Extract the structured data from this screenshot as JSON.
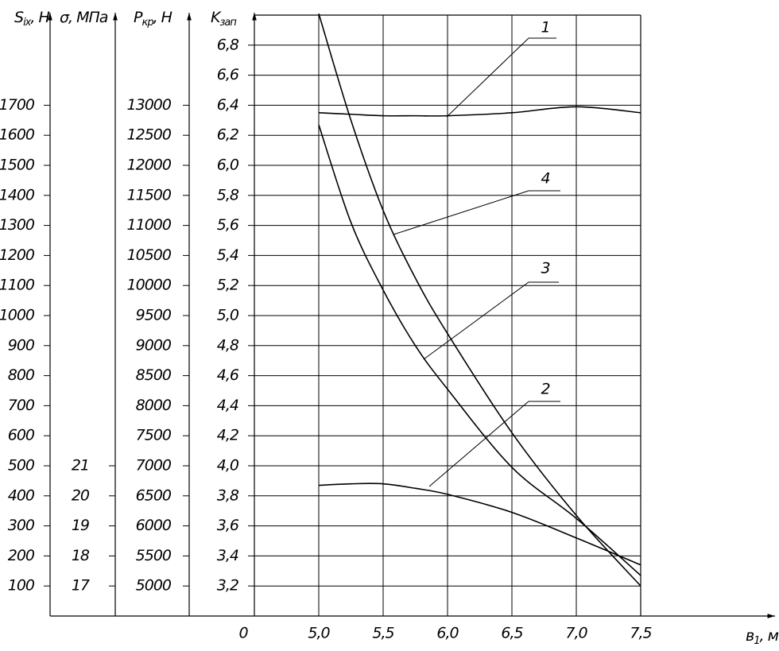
{
  "chart_data": {
    "type": "line",
    "x_label": {
      "symbol": "в",
      "subscript": "1",
      "unit": ", м"
    },
    "y_label": {
      "symbol": "K",
      "subscript": "зап"
    },
    "origin_label": "0",
    "x": [
      5.0,
      5.25,
      5.5,
      5.75,
      6.0,
      6.5,
      7.0,
      7.5
    ],
    "xlim": [
      4.5,
      7.5
    ],
    "xticks": [
      {
        "value": 5.0,
        "label": "5,0"
      },
      {
        "value": 5.5,
        "label": "5,5"
      },
      {
        "value": 6.0,
        "label": "6,0"
      },
      {
        "value": 6.5,
        "label": "6,5"
      },
      {
        "value": 7.0,
        "label": "7,0"
      },
      {
        "value": 7.5,
        "label": "7,5"
      }
    ],
    "ylim": [
      3.0,
      7.0
    ],
    "yticks": [
      {
        "value": 3.2,
        "label": "3,2"
      },
      {
        "value": 3.4,
        "label": "3,4"
      },
      {
        "value": 3.6,
        "label": "3,6"
      },
      {
        "value": 3.8,
        "label": "3,8"
      },
      {
        "value": 4.0,
        "label": "4,0"
      },
      {
        "value": 4.2,
        "label": "4,2"
      },
      {
        "value": 4.4,
        "label": "4,4"
      },
      {
        "value": 4.6,
        "label": "4,6"
      },
      {
        "value": 4.8,
        "label": "4,8"
      },
      {
        "value": 5.0,
        "label": "5,0"
      },
      {
        "value": 5.2,
        "label": "5,2"
      },
      {
        "value": 5.4,
        "label": "5,4"
      },
      {
        "value": 5.6,
        "label": "5,6"
      },
      {
        "value": 5.8,
        "label": "5,8"
      },
      {
        "value": 6.0,
        "label": "6,0"
      },
      {
        "value": 6.2,
        "label": "6,2"
      },
      {
        "value": 6.4,
        "label": "6,4"
      },
      {
        "value": 6.6,
        "label": "6,6"
      },
      {
        "value": 6.8,
        "label": "6,8"
      }
    ],
    "grid": true,
    "color": "#000000",
    "series": [
      {
        "name": "1",
        "values": [
          6.35,
          6.34,
          6.33,
          6.33,
          6.33,
          6.35,
          6.39,
          6.35
        ]
      },
      {
        "name": "2",
        "values": [
          3.87,
          3.88,
          3.88,
          3.85,
          3.81,
          3.69,
          3.52,
          3.34
        ]
      },
      {
        "name": "3",
        "values": [
          6.27,
          5.62,
          5.17,
          4.8,
          4.51,
          3.99,
          3.65,
          3.27
        ]
      },
      {
        "name": "4",
        "values": [
          7.01,
          6.3,
          5.7,
          5.25,
          4.88,
          4.22,
          3.67,
          3.2
        ]
      }
    ],
    "extra_axes": [
      {
        "label": {
          "symbol": "S",
          "subscript": "ix",
          "unit": ", Н"
        },
        "lim": [
          0,
          2000
        ],
        "ticks": [
          100,
          200,
          300,
          400,
          500,
          600,
          700,
          800,
          900,
          1000,
          1100,
          1200,
          1300,
          1400,
          1500,
          1600,
          1700
        ]
      },
      {
        "label": {
          "symbol": "σ",
          "unit": ", МПа"
        },
        "lim": [
          16,
          36
        ],
        "ticks": [
          17,
          18,
          19,
          20,
          21
        ]
      },
      {
        "label": {
          "symbol": "P",
          "subscript": "кр",
          "unit": ", Н"
        },
        "lim": [
          4500,
          14500
        ],
        "ticks": [
          5000,
          5500,
          6000,
          6500,
          7000,
          7500,
          8000,
          8500,
          9000,
          9500,
          10000,
          10500,
          11000,
          11500,
          12000,
          12500,
          13000
        ]
      }
    ]
  }
}
